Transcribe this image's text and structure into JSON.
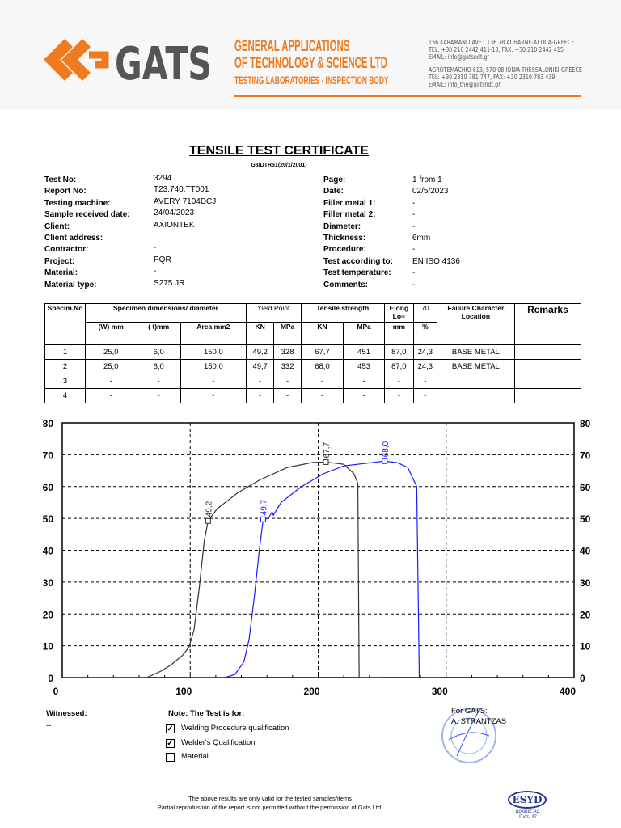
{
  "header": {
    "logo_text": "GATS",
    "company_line1": "GENERAL APPLICATIONS",
    "company_line2": "OF TECHNOLOGY & SCIENCE LTD",
    "company_line3": "TESTING LABORATORIES - INSPECTION BODY",
    "address": [
      "156 KARAMANLI AVE., 136 78 ACHARNE-ATTICA-GREECE",
      "TEL: +30 210 2442 411-13,   FAX: +30 210 2442 415",
      "EMAIL: info@gatsndt.gr",
      "AGROTEMACHIO 613,  570 08 IONIA-THESSALONIKI-GREECE",
      "TEL: +30 2310 781 747,  FAX: +30 2310 783 439",
      "EMAIL: info_the@gatsndt.gr"
    ],
    "accent_color": "#f07a1e"
  },
  "doc": {
    "title": "TENSILE TEST CERTIFICATE",
    "subtitle": "G8/DTR51(20/1/2001)"
  },
  "fields_left": [
    {
      "label": "Test No:",
      "value": "3294"
    },
    {
      "label": "Report No:",
      "value": "T23.740.TT001"
    },
    {
      "label": "Testing machine:",
      "value": "AVERY 7104DCJ"
    },
    {
      "label": "Sample received date:",
      "value": "24/04/2023"
    },
    {
      "label": "Client:",
      "value": "AXIONTEK"
    },
    {
      "label": "Client address:",
      "value": ""
    },
    {
      "label": "Contractor:",
      "value": "-"
    },
    {
      "label": "Project:",
      "value": "PQR"
    },
    {
      "label": "Material:",
      "value": "-"
    },
    {
      "label": "Material type:",
      "value": "S275 JR"
    }
  ],
  "fields_right": [
    {
      "label": "Page:",
      "value": "1 from 1"
    },
    {
      "label": "Date:",
      "value": "02/5/2023"
    },
    {
      "label": "Filler metal 1:",
      "value": "-"
    },
    {
      "label": "Filler metal 2:",
      "value": "-"
    },
    {
      "label": "Diameter:",
      "value": "-"
    },
    {
      "label": "Thickness:",
      "value": "6mm"
    },
    {
      "label": "Procedure:",
      "value": "-"
    },
    {
      "label": "Test according to:",
      "value": "EN ISO 4136"
    },
    {
      "label": "Test temperature:",
      "value": "-"
    },
    {
      "label": "Comments:",
      "value": "-"
    }
  ],
  "table": {
    "h_spec": "Specim.No",
    "h_dims": "Specimen  dimensions/ diameter",
    "h_yield": "Yield Point",
    "h_tensile": "Tensile        strength",
    "h_elong": "Elong Lo=",
    "h_elong_val": "70",
    "h_failure": "Failure Character Location",
    "h_remarks": "Remarks",
    "sub": [
      "(W) mm",
      "( t)mm",
      "Area  mm2",
      "KN",
      "MPa",
      "KN",
      "MPa",
      "mm",
      "%"
    ],
    "rows": [
      [
        "1",
        "25,0",
        "6,0",
        "150,0",
        "49,2",
        "328",
        "67,7",
        "451",
        "87,0",
        "24,3",
        "BASE METAL",
        ""
      ],
      [
        "2",
        "25,0",
        "6,0",
        "150,0",
        "49,7",
        "332",
        "68,0",
        "453",
        "87,0",
        "24,3",
        "BASE METAL",
        ""
      ],
      [
        "3",
        "-",
        "-",
        "-",
        "-",
        "-",
        "-",
        "-",
        "-",
        "-",
        "",
        ""
      ],
      [
        "4",
        "-",
        "-",
        "-",
        "-",
        "-",
        "-",
        "-",
        "-",
        "-",
        "",
        ""
      ]
    ]
  },
  "chart_data": {
    "type": "line",
    "xlim": [
      0,
      400
    ],
    "ylim": [
      0,
      80
    ],
    "xticks": [
      "0",
      "100",
      "200",
      "300",
      "400"
    ],
    "yticks": [
      "0",
      "10",
      "20",
      "30",
      "40",
      "50",
      "60",
      "70",
      "80"
    ],
    "grid": true,
    "series": [
      {
        "color": "#333333",
        "points": [
          [
            0,
            0
          ],
          [
            66,
            0
          ],
          [
            77,
            2
          ],
          [
            85,
            4
          ],
          [
            94,
            7
          ],
          [
            99,
            9.5
          ],
          [
            103,
            15
          ],
          [
            107,
            28
          ],
          [
            111,
            43
          ],
          [
            114,
            49.2
          ],
          [
            121,
            53
          ],
          [
            137,
            58
          ],
          [
            154,
            62
          ],
          [
            176,
            66
          ],
          [
            196,
            67.6
          ],
          [
            206,
            67.7
          ],
          [
            220,
            67
          ],
          [
            228,
            64
          ],
          [
            231,
            61
          ],
          [
            232,
            0
          ],
          [
            248,
            0
          ]
        ],
        "markers": [
          {
            "x": 114,
            "y": 49.2,
            "label": "49,2"
          },
          {
            "x": 206,
            "y": 67.7,
            "label": "67,7"
          }
        ]
      },
      {
        "color": "#1a1aff",
        "points": [
          [
            99,
            0
          ],
          [
            127,
            0
          ],
          [
            135,
            1
          ],
          [
            142,
            5
          ],
          [
            146,
            12
          ],
          [
            150,
            25
          ],
          [
            154,
            40
          ],
          [
            157,
            49.7
          ],
          [
            161,
            50
          ],
          [
            164,
            52
          ],
          [
            165,
            51
          ],
          [
            171,
            55
          ],
          [
            187,
            60
          ],
          [
            204,
            64
          ],
          [
            220,
            66.5
          ],
          [
            252,
            68
          ],
          [
            262,
            67.5
          ],
          [
            270,
            66
          ],
          [
            277,
            60
          ],
          [
            279,
            0
          ],
          [
            295,
            0
          ]
        ],
        "markers": [
          {
            "x": 157,
            "y": 49.7,
            "label": "49,7"
          },
          {
            "x": 252,
            "y": 68,
            "label": "68,0"
          }
        ]
      }
    ]
  },
  "footer": {
    "witnessed_label": "Witnessed:",
    "witnessed_value": "--",
    "note_label": "Note: The Test is for:",
    "checks": [
      {
        "label": "Welding Procedure qualification",
        "checked": true
      },
      {
        "label": "Welder's Qualification",
        "checked": true
      },
      {
        "label": "Material",
        "checked": false
      }
    ],
    "for_label": "For GATS:",
    "signatory": "A. STRANTZAS",
    "disclaimer1": "The above results are only valid for the tested samples/items",
    "disclaimer2": "Partial reprodustion of the report is not permitted without the permission of Gats Ltd.",
    "accreditation": "ESYD",
    "accreditation_sub": "Δοκιμές Αρ. Πιστ. 47"
  }
}
